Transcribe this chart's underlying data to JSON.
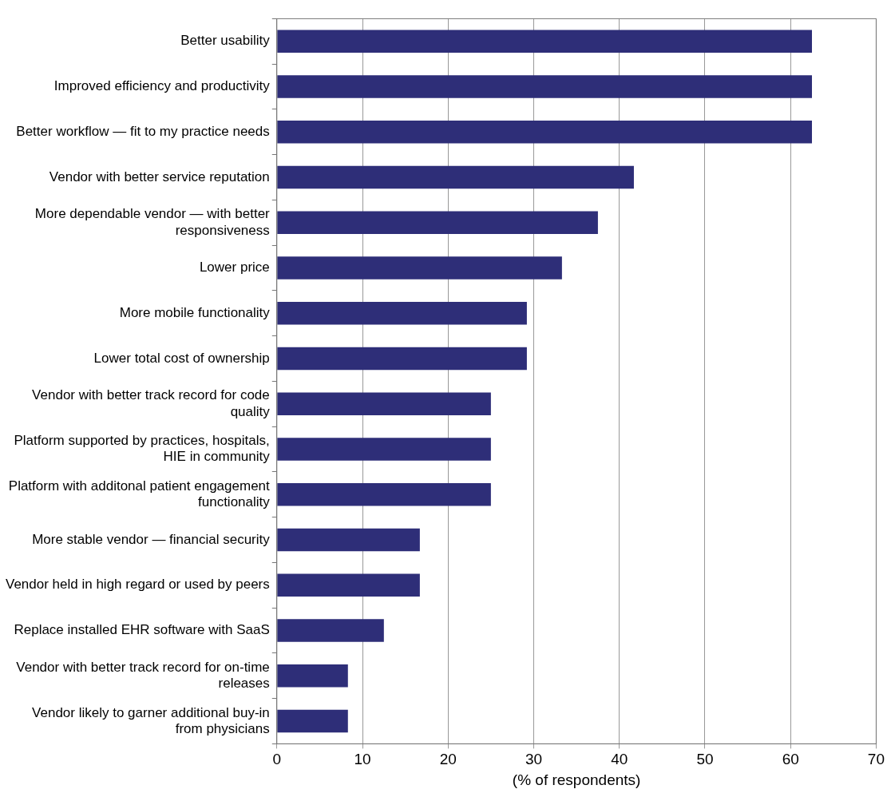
{
  "chart_data": {
    "type": "bar",
    "orientation": "horizontal",
    "xlabel": "(% of respondents)",
    "categories": [
      "Better usability",
      "Improved efficiency and productivity",
      "Better workflow — fit to my practice needs",
      "Vendor with better service reputation",
      "More dependable vendor — with better responsiveness",
      "Lower price",
      "More mobile functionality",
      "Lower total cost of ownership",
      "Vendor with better track record for code quality",
      "Platform supported by practices, hospitals, HIE in community",
      "Platform with additonal patient engagement functionality",
      "More stable vendor — financial security",
      "Vendor held in high regard or used by peers",
      "Replace installed EHR software with SaaS",
      "Vendor with better track record for on-time releases",
      "Vendor likely to garner additional buy-in from physicians"
    ],
    "values": [
      62.5,
      62.5,
      62.5,
      41.7,
      37.5,
      33.3,
      29.2,
      29.2,
      25,
      25,
      25,
      16.7,
      16.7,
      12.5,
      8.3,
      8.3
    ],
    "color": "#2e2e78",
    "xlim": [
      0,
      70
    ],
    "xticks": [
      0,
      10,
      20,
      30,
      40,
      50,
      60,
      70
    ],
    "grid": "x",
    "legend": false
  }
}
